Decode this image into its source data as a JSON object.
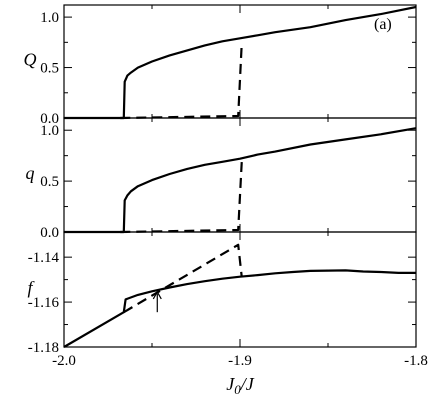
{
  "chart_data": {
    "type": "line",
    "panel_tag": "(a)",
    "xlabel_main": "J",
    "xlabel_sub": "0",
    "xlabel_tail": "/J",
    "xlim": [
      -2.0,
      -1.8
    ],
    "x_ticks": [
      -2.0,
      -1.9,
      -1.8
    ],
    "x_tick_labels": [
      "-2.0",
      "-1.9",
      "-1.8"
    ],
    "panels": [
      {
        "ylabel": "Q",
        "ylim": [
          0.0,
          1.12
        ],
        "y_ticks": [
          0.0,
          0.5,
          1.0
        ],
        "y_tick_labels": [
          "0.0",
          "0.5",
          "1.0"
        ],
        "series": [
          {
            "style": "solid",
            "points": [
              [
                -2.0,
                0.0
              ],
              [
                -1.966,
                0.0
              ],
              [
                -1.966,
                0.0
              ],
              [
                -1.9655,
                0.36
              ],
              [
                -1.964,
                0.42
              ],
              [
                -1.962,
                0.45
              ],
              [
                -1.958,
                0.5
              ],
              [
                -1.95,
                0.56
              ],
              [
                -1.94,
                0.62
              ],
              [
                -1.93,
                0.67
              ],
              [
                -1.92,
                0.72
              ],
              [
                -1.91,
                0.76
              ],
              [
                -1.9,
                0.79
              ],
              [
                -1.89,
                0.82
              ],
              [
                -1.88,
                0.85
              ],
              [
                -1.86,
                0.9
              ],
              [
                -1.84,
                0.97
              ],
              [
                -1.82,
                1.03
              ],
              [
                -1.8,
                1.1
              ]
            ]
          },
          {
            "style": "dashed",
            "points": [
              [
                -1.968,
                0.0
              ],
              [
                -1.901,
                0.02
              ],
              [
                -1.899,
                0.75
              ]
            ]
          }
        ]
      },
      {
        "ylabel": "q",
        "ylim": [
          0.0,
          1.12
        ],
        "y_ticks": [
          0.0,
          0.5,
          1.0
        ],
        "y_tick_labels": [
          "0.0",
          "0.5",
          "1.0"
        ],
        "series": [
          {
            "style": "solid",
            "points": [
              [
                -2.0,
                0.0
              ],
              [
                -1.966,
                0.0
              ],
              [
                -1.966,
                0.0
              ],
              [
                -1.9655,
                0.31
              ],
              [
                -1.964,
                0.36
              ],
              [
                -1.962,
                0.4
              ],
              [
                -1.958,
                0.45
              ],
              [
                -1.95,
                0.51
              ],
              [
                -1.94,
                0.57
              ],
              [
                -1.93,
                0.62
              ],
              [
                -1.92,
                0.66
              ],
              [
                -1.91,
                0.69
              ],
              [
                -1.9,
                0.72
              ],
              [
                -1.89,
                0.76
              ],
              [
                -1.88,
                0.79
              ],
              [
                -1.86,
                0.86
              ],
              [
                -1.84,
                0.91
              ],
              [
                -1.82,
                0.96
              ],
              [
                -1.8,
                1.02
              ]
            ]
          },
          {
            "style": "dashed",
            "points": [
              [
                -1.968,
                0.0
              ],
              [
                -1.901,
                0.02
              ],
              [
                -1.899,
                0.7
              ]
            ]
          }
        ]
      },
      {
        "ylabel": "f",
        "ylim": [
          -1.18,
          -1.1288
        ],
        "y_ticks": [
          -1.18,
          -1.16,
          -1.14
        ],
        "y_tick_labels": [
          "-1.18",
          "-1.16",
          "-1.14"
        ],
        "series": [
          {
            "style": "solid",
            "points": [
              [
                -2.0,
                -1.18
              ],
              [
                -1.966,
                -1.1645
              ],
              [
                -1.965,
                -1.1588
              ],
              [
                -1.958,
                -1.1568
              ],
              [
                -1.95,
                -1.1552
              ],
              [
                -1.94,
                -1.1535
              ],
              [
                -1.93,
                -1.152
              ],
              [
                -1.92,
                -1.1507
              ],
              [
                -1.91,
                -1.1496
              ],
              [
                -1.9,
                -1.1487
              ],
              [
                -1.89,
                -1.148
              ],
              [
                -1.88,
                -1.1472
              ],
              [
                -1.87,
                -1.1466
              ],
              [
                -1.86,
                -1.1461
              ],
              [
                -1.85,
                -1.146
              ],
              [
                -1.84,
                -1.1459
              ],
              [
                -1.83,
                -1.1464
              ],
              [
                -1.82,
                -1.1466
              ],
              [
                -1.81,
                -1.147
              ],
              [
                -1.8,
                -1.147
              ]
            ]
          },
          {
            "style": "dashed",
            "points": [
              [
                -1.966,
                -1.1645
              ],
              [
                -1.901,
                -1.1345
              ],
              [
                -1.899,
                -1.149
              ]
            ]
          }
        ],
        "arrow": {
          "x": -1.947,
          "y_tail": -1.1645,
          "y_head": -1.1555
        }
      }
    ]
  }
}
